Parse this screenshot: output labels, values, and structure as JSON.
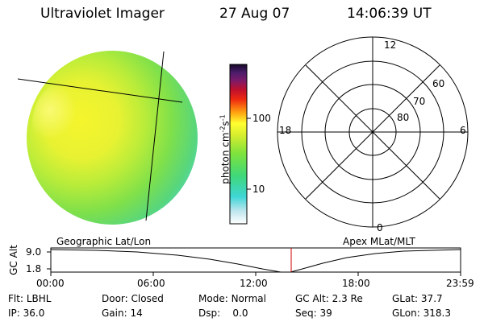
{
  "header": {
    "instrument": "Ultraviolet Imager",
    "date": "27 Aug 07",
    "time": "14:06:39 UT"
  },
  "colorbar": {
    "label": "photon cm",
    "label_exp": "-2",
    "label_s": "s",
    "label_s_exp": "-1",
    "ticks": [
      "100",
      "10"
    ]
  },
  "polar": {
    "mlt_labels": {
      "top": "12",
      "left": "18",
      "right": "6",
      "bottom": "0"
    },
    "lat_labels": [
      "80",
      "70",
      "60"
    ]
  },
  "orbit": {
    "left_caption": "Geographic Lat/Lon",
    "right_caption": "Apex MLat/MLT",
    "axis_title": "GC Alt",
    "y_ticks": [
      "9.0",
      "1.8"
    ],
    "x_ticks": [
      "00:00",
      "06:00",
      "12:00",
      "18:00",
      "23:59"
    ],
    "marker_color": "#cc0000"
  },
  "status": {
    "flt_label": "Flt:",
    "flt_value": "LBHL",
    "ip_label": "IP:",
    "ip_value": "36.0",
    "door_label": "Door:",
    "door_value": "Closed",
    "gain_label": "Gain:",
    "gain_value": "14",
    "mode_label": "Mode:",
    "mode_value": "Normal",
    "dsp_label": "Dsp:",
    "dsp_value": "0.0",
    "gcalt_label": "GC Alt:",
    "gcalt_value": "2.3 Re",
    "seq_label": "Seq:",
    "seq_value": "39",
    "glat_label": "GLat:",
    "glat_value": "37.7",
    "glon_label": "GLon:",
    "glon_value": "318.3"
  }
}
